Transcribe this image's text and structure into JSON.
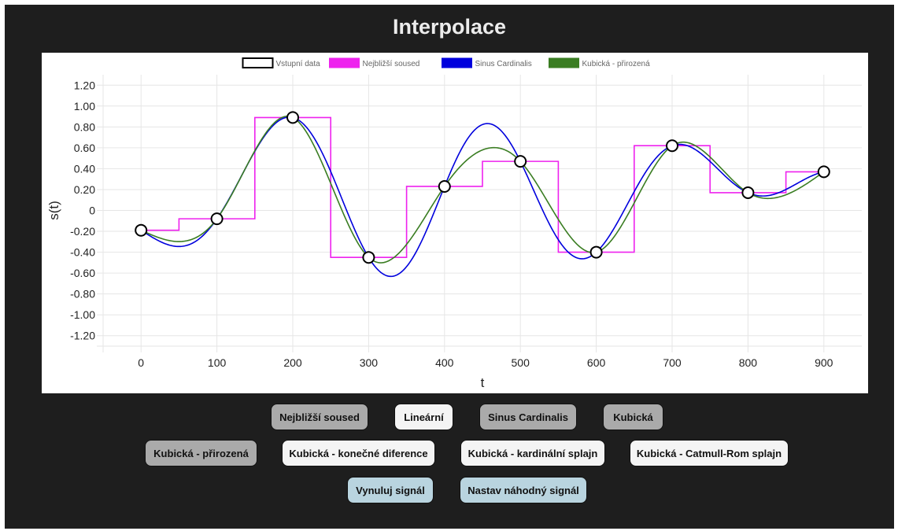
{
  "header": {
    "title": "Interpolace"
  },
  "colors": {
    "app_background": "#1e1e1e",
    "button_gray": "#aaaaaa",
    "button_white": "#f4f4f4",
    "button_blue": "#b9d4df"
  },
  "chart_data": {
    "type": "line",
    "xlabel": "t",
    "ylabel": "s(t)",
    "xlim": [
      -50,
      950
    ],
    "ylim": [
      -1.3,
      1.3
    ],
    "x_ticks": [
      0,
      100,
      200,
      300,
      400,
      500,
      600,
      700,
      800,
      900
    ],
    "x_tick_labels": [
      "0",
      "100",
      "200",
      "300",
      "400",
      "500",
      "600",
      "700",
      "800",
      "900"
    ],
    "y_ticks": [
      1.2,
      1.0,
      0.8,
      0.6,
      0.4,
      0.2,
      0,
      -0.2,
      -0.4,
      -0.6,
      -0.8,
      -1.0,
      -1.2
    ],
    "y_tick_labels": [
      "1.20",
      "1.00",
      "0.80",
      "0.60",
      "0.40",
      "0.20",
      "0",
      "-0.20",
      "-0.40",
      "-0.60",
      "-0.80",
      "-1.00",
      "-1.20"
    ],
    "grid": true,
    "legend_position": "top",
    "points": {
      "x": [
        0,
        100,
        200,
        300,
        400,
        500,
        600,
        700,
        800,
        900
      ],
      "y": [
        -0.19,
        -0.08,
        0.89,
        -0.45,
        0.23,
        0.47,
        -0.4,
        0.62,
        0.17,
        0.37
      ]
    },
    "series": [
      {
        "name": "Vstupní data",
        "color": "#000000",
        "style": "markers"
      },
      {
        "name": "Nejbližší soused",
        "color": "#ee22ee",
        "style": "step"
      },
      {
        "name": "Sinus Cardinalis",
        "color": "#0000dd",
        "style": "sinc"
      },
      {
        "name": "Kubická - přirozená",
        "color": "#3a7d22",
        "style": "natural-cubic"
      }
    ]
  },
  "buttons": [
    {
      "label": "Nejbližší soused"
    },
    {
      "label": "Lineární"
    },
    {
      "label": "Sinus Cardinalis"
    },
    {
      "label": "Kubická"
    },
    {
      "label": "Kubická - přirozená"
    },
    {
      "label": "Kubická - konečné diference"
    },
    {
      "label": "Kubická - kardinální splajn"
    },
    {
      "label": "Kubická - Catmull-Rom splajn"
    },
    {
      "label": "Vynuluj signál"
    },
    {
      "label": "Nastav náhodný signál"
    }
  ]
}
